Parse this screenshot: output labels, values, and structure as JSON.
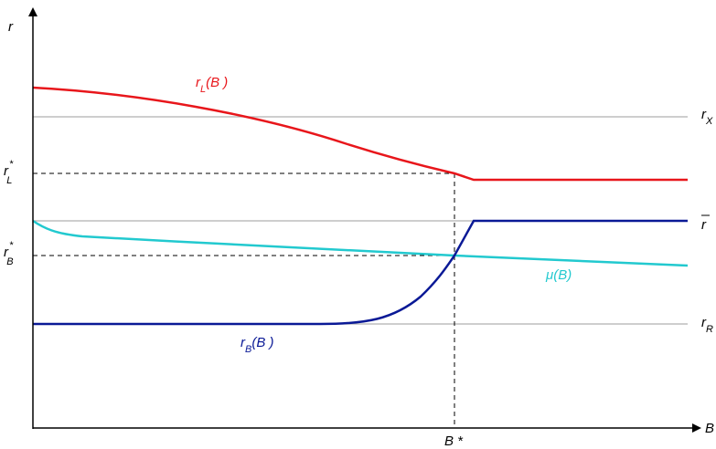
{
  "axes": {
    "y_label": "r",
    "x_label": "B"
  },
  "lines": {
    "r_X": {
      "main": "r",
      "sub": "X"
    },
    "r_bar": {
      "main": "r"
    },
    "r_R": {
      "main": "r",
      "sub": "R"
    }
  },
  "curves": {
    "r_L": {
      "main": "r",
      "sub": "L",
      "arg": "(B )",
      "color": "#e8161b"
    },
    "r_B": {
      "main": "r",
      "sub": "B",
      "arg": "(B )",
      "color": "#0a1996"
    },
    "mu": {
      "label": "μ(B)",
      "color": "#22c9cf"
    }
  },
  "equilibrium": {
    "x_label": "B *",
    "r_L_star": {
      "main": "r",
      "sup": "*",
      "sub": "L"
    },
    "r_B_star": {
      "main": "r",
      "sup": "*",
      "sub": "B"
    }
  },
  "colors": {
    "axis": "#000000",
    "reference_line": "#b0b0b0",
    "dashed": "#000000"
  }
}
